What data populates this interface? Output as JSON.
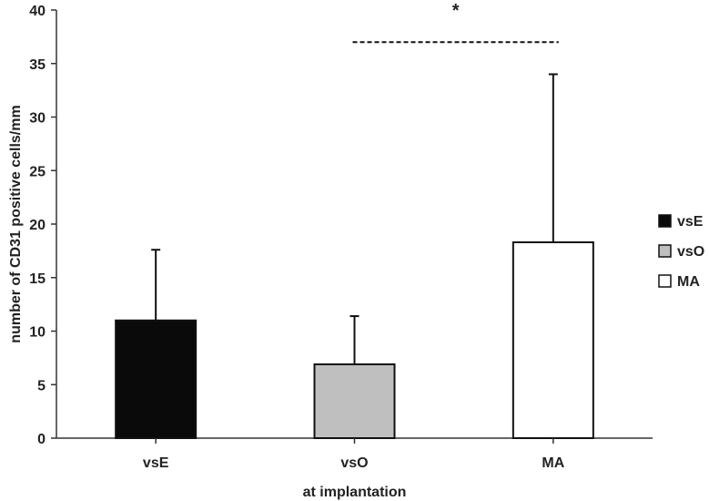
{
  "chart_data": {
    "type": "bar",
    "title": "",
    "xlabel": "at implantation",
    "ylabel": "number of CD31 positive cells/mm",
    "ylim": [
      0,
      40
    ],
    "yticks": [
      0,
      5,
      10,
      15,
      20,
      25,
      30,
      35,
      40
    ],
    "categories": [
      "vsE",
      "vsO",
      "MA"
    ],
    "values": [
      11.0,
      6.9,
      18.3
    ],
    "error_upper": [
      6.6,
      4.5,
      15.7
    ],
    "bar_colors": [
      "#0a0a0a",
      "#bfbfbf",
      "#ffffff"
    ],
    "grid": false,
    "legend": {
      "placement": "right",
      "entries": [
        {
          "label": "vsE",
          "color": "#0a0a0a"
        },
        {
          "label": "vsO",
          "color": "#bfbfbf"
        },
        {
          "label": "MA",
          "color": "#ffffff"
        }
      ]
    },
    "annotations": [
      {
        "type": "significance",
        "text": "*",
        "from": "vsO",
        "to": "MA",
        "y": 37,
        "style": "dashed"
      }
    ]
  }
}
